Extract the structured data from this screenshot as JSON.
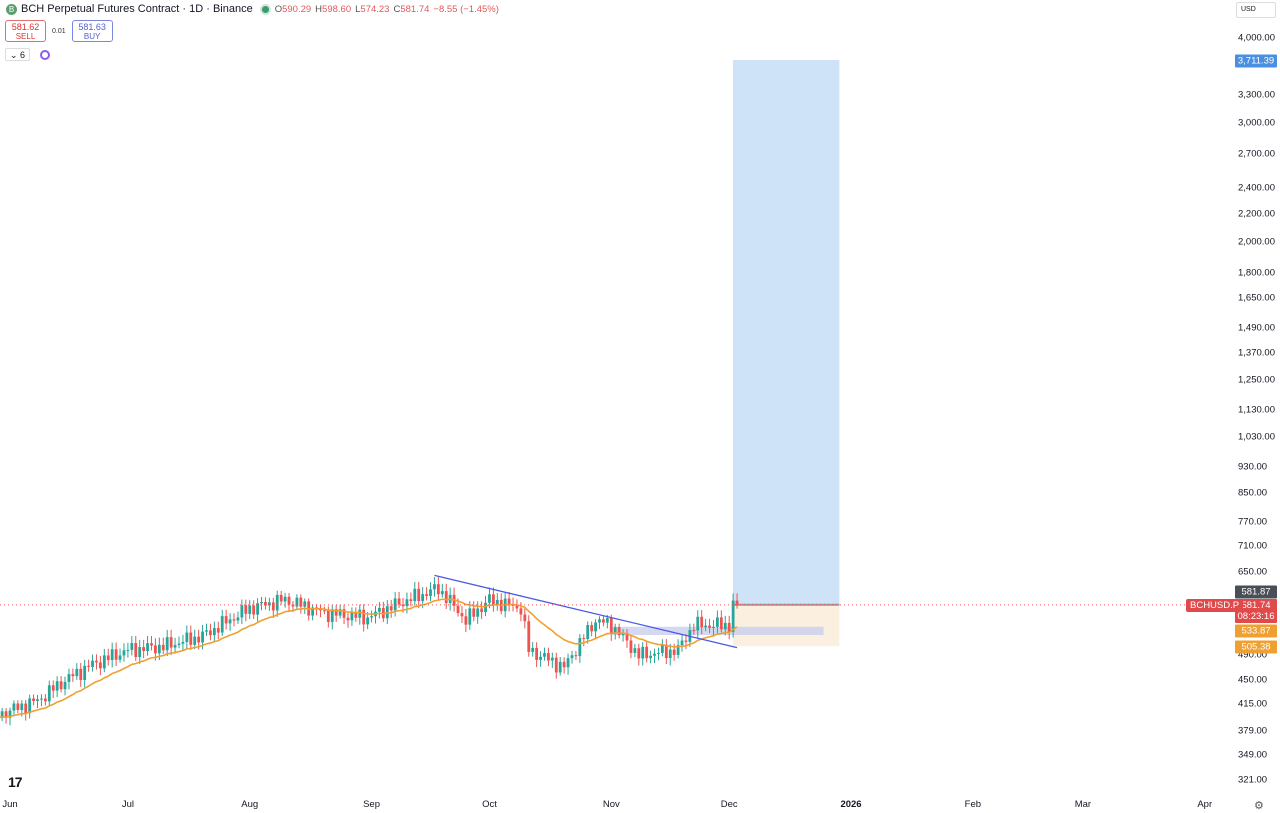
{
  "header": {
    "symbol_title": "BCH Perpetual Futures Contract · 1D · Binance",
    "logo_letter": "B",
    "open": "590.29",
    "high": "598.60",
    "low": "574.23",
    "close": "581.74",
    "change": "−8.55 (−1.45%)",
    "o_label": "O",
    "h_label": "H",
    "l_label": "L",
    "c_label": "C"
  },
  "trade": {
    "sell_price": "581.62",
    "sell_label": "SELL",
    "spread": "0.01",
    "buy_price": "581.63",
    "buy_label": "BUY"
  },
  "indicators": {
    "count": "6"
  },
  "currency": "USD",
  "symbol_tag": "BCHUSD.P",
  "countdown": "08:23:16",
  "colors": {
    "up": "#26a69a",
    "down": "#ef5350",
    "ma": "#f0a030",
    "trendline": "#4a5ae8",
    "target_zone": "#cfe3f8",
    "stop_zone": "#fbf0df",
    "box": "#c9cfee"
  },
  "chart_data": {
    "type": "candlestick",
    "scale": "log",
    "ylim": [
      321,
      4000
    ],
    "y_ticks": [
      {
        "v": 4000,
        "t": "4,000.00"
      },
      {
        "v": 3300,
        "t": "3,300.00"
      },
      {
        "v": 3000,
        "t": "3,000.00"
      },
      {
        "v": 2700,
        "t": "2,700.00"
      },
      {
        "v": 2400,
        "t": "2,400.00"
      },
      {
        "v": 2200,
        "t": "2,200.00"
      },
      {
        "v": 2000,
        "t": "2,000.00"
      },
      {
        "v": 1800,
        "t": "1,800.00"
      },
      {
        "v": 1650,
        "t": "1,650.00"
      },
      {
        "v": 1490,
        "t": "1,490.00"
      },
      {
        "v": 1370,
        "t": "1,370.00"
      },
      {
        "v": 1250,
        "t": "1,250.00"
      },
      {
        "v": 1130,
        "t": "1,130.00"
      },
      {
        "v": 1030,
        "t": "1,030.00"
      },
      {
        "v": 930,
        "t": "930.00"
      },
      {
        "v": 850,
        "t": "850.00"
      },
      {
        "v": 770,
        "t": "770.00"
      },
      {
        "v": 710,
        "t": "710.00"
      },
      {
        "v": 650,
        "t": "650.00"
      },
      {
        "v": 490,
        "t": "490.00"
      },
      {
        "v": 450,
        "t": "450.00"
      },
      {
        "v": 415,
        "t": "415.00"
      },
      {
        "v": 379,
        "t": "379.00"
      },
      {
        "v": 349,
        "t": "349.00"
      },
      {
        "v": 321,
        "t": "321.00"
      }
    ],
    "x_ticks": [
      {
        "d": "2025-06-01",
        "t": "Jun"
      },
      {
        "d": "2025-07-01",
        "t": "Jul"
      },
      {
        "d": "2025-08-01",
        "t": "Aug"
      },
      {
        "d": "2025-09-01",
        "t": "Sep"
      },
      {
        "d": "2025-10-01",
        "t": "Oct"
      },
      {
        "d": "2025-11-01",
        "t": "Nov"
      },
      {
        "d": "2025-12-01",
        "t": "Dec"
      },
      {
        "d": "2026-01-01",
        "t": "2026"
      },
      {
        "d": "2026-02-01",
        "t": "Feb"
      },
      {
        "d": "2026-03-01",
        "t": "Mar"
      },
      {
        "d": "2026-04-01",
        "t": "Apr"
      }
    ],
    "close_path": [
      {
        "d": "2025-05-29",
        "c": 400
      },
      {
        "d": "2025-06-08",
        "c": 420
      },
      {
        "d": "2025-06-15",
        "c": 450
      },
      {
        "d": "2025-06-22",
        "c": 475
      },
      {
        "d": "2025-07-01",
        "c": 499
      },
      {
        "d": "2025-07-10",
        "c": 505
      },
      {
        "d": "2025-07-20",
        "c": 523
      },
      {
        "d": "2025-08-01",
        "c": 575
      },
      {
        "d": "2025-08-10",
        "c": 592
      },
      {
        "d": "2025-08-20",
        "c": 566
      },
      {
        "d": "2025-08-31",
        "c": 557
      },
      {
        "d": "2025-09-10",
        "c": 591
      },
      {
        "d": "2025-09-18",
        "c": 615
      },
      {
        "d": "2025-09-25",
        "c": 552
      },
      {
        "d": "2025-10-01",
        "c": 591
      },
      {
        "d": "2025-10-09",
        "c": 575
      },
      {
        "d": "2025-10-11",
        "c": 499
      },
      {
        "d": "2025-10-20",
        "c": 470
      },
      {
        "d": "2025-10-28",
        "c": 552
      },
      {
        "d": "2025-11-01",
        "c": 543
      },
      {
        "d": "2025-11-08",
        "c": 490
      },
      {
        "d": "2025-11-18",
        "c": 499
      },
      {
        "d": "2025-11-22",
        "c": 543
      },
      {
        "d": "2025-12-01",
        "c": 543
      },
      {
        "d": "2025-12-02",
        "c": 590.29
      },
      {
        "d": "2025-12-03",
        "c": 581.74
      }
    ],
    "trendline": [
      {
        "d": "2025-09-17",
        "v": 643
      },
      {
        "d": "2025-12-03",
        "v": 503
      }
    ],
    "zone_box": {
      "from": "2025-11-01",
      "to": "2025-12-25",
      "low": 525,
      "high": 540
    },
    "long_position": {
      "from": "2025-12-04",
      "to": "2025-12-27",
      "entry": 581.87,
      "target": 3711.39,
      "stop": 505.38
    },
    "price_labels": {
      "target": "3,711.39",
      "entry": "581.87",
      "last": "581.74",
      "ma": "533.87",
      "stop": "505.38"
    }
  }
}
